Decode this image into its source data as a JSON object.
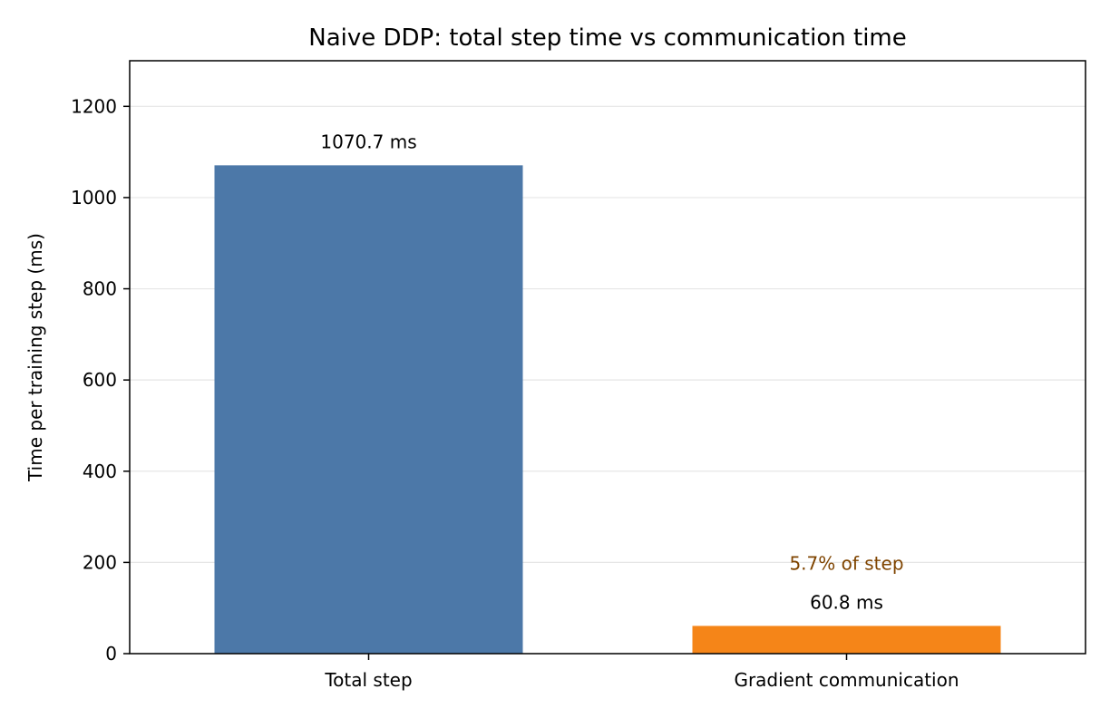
{
  "chart_data": {
    "type": "bar",
    "title": "Naive DDP: total step time vs communication time",
    "xlabel": "",
    "ylabel": "Time per training step (ms)",
    "categories": [
      "Total step",
      "Gradient communication"
    ],
    "values": [
      1070.7,
      60.8
    ],
    "data_labels": [
      "1070.7 ms",
      "60.8 ms"
    ],
    "colors": [
      "#4c78a8",
      "#f58518"
    ],
    "ylim": [
      0,
      1300
    ],
    "yticks": [
      0,
      200,
      400,
      600,
      800,
      1000,
      1200
    ],
    "grid": "y",
    "annotations": [
      {
        "text": "5.7% of step",
        "category": "Gradient communication",
        "color": "#7f4400"
      }
    ]
  }
}
